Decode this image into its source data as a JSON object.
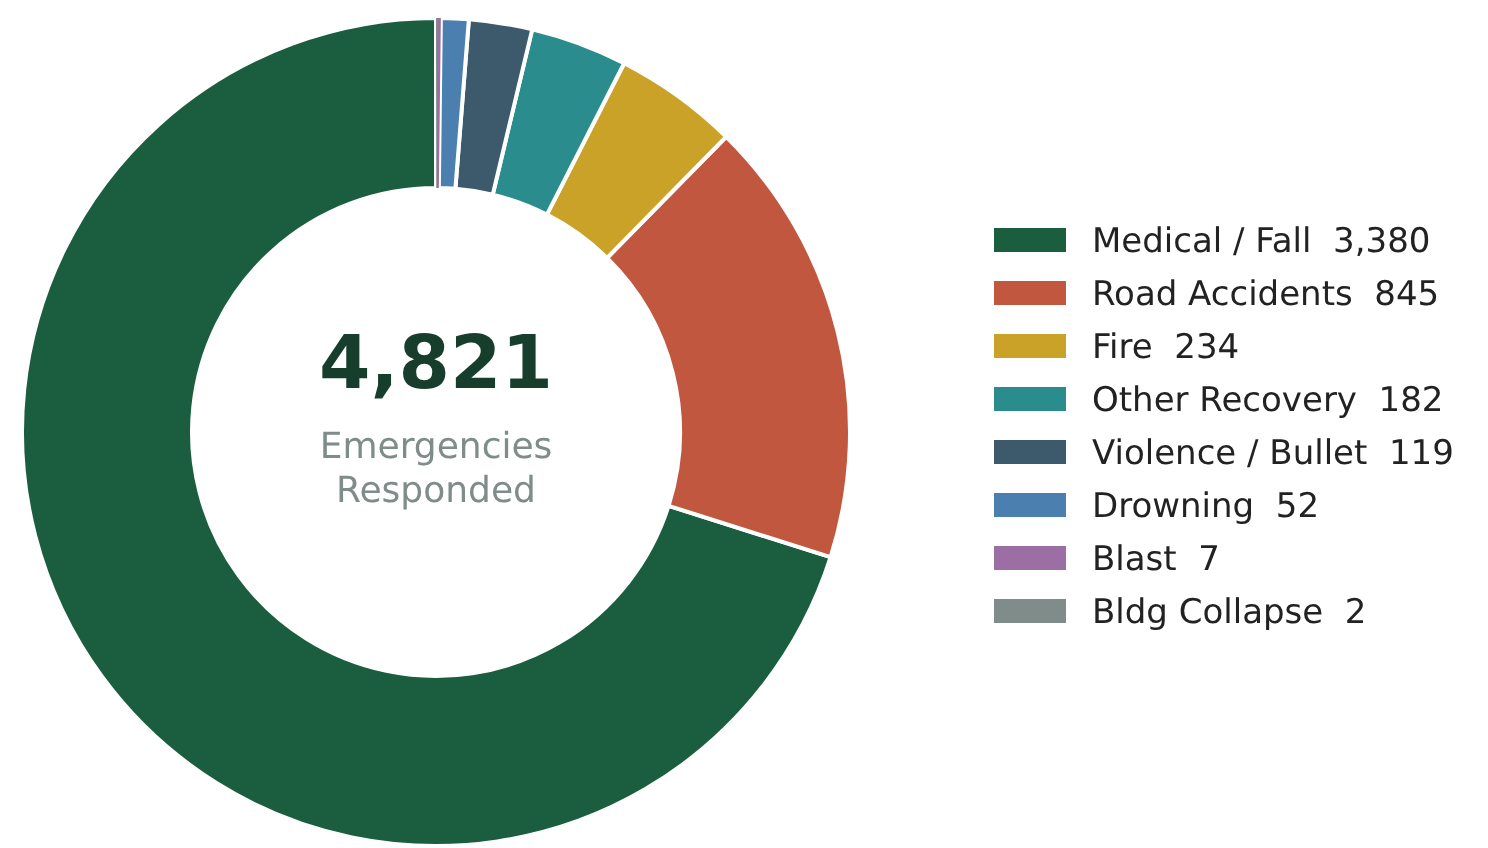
{
  "chart_data": {
    "type": "donut",
    "categories": [
      "Medical / Fall",
      "Road Accidents",
      "Fire",
      "Other Recovery",
      "Violence / Bullet",
      "Drowning",
      "Blast",
      "Bldg Collapse"
    ],
    "values": [
      3380,
      845,
      234,
      182,
      119,
      52,
      7,
      2
    ],
    "value_labels": [
      "3,380",
      "845",
      "234",
      "182",
      "119",
      "52",
      "7",
      "2"
    ],
    "colors": [
      "#1b5e3f",
      "#c0573e",
      "#c9a227",
      "#2a8c8c",
      "#3d5a6c",
      "#4a7fb0",
      "#9b6fa3",
      "#7f8c8a"
    ],
    "annotations": [
      "4,821",
      "Emergencies Responded"
    ],
    "legend": "right"
  }
}
